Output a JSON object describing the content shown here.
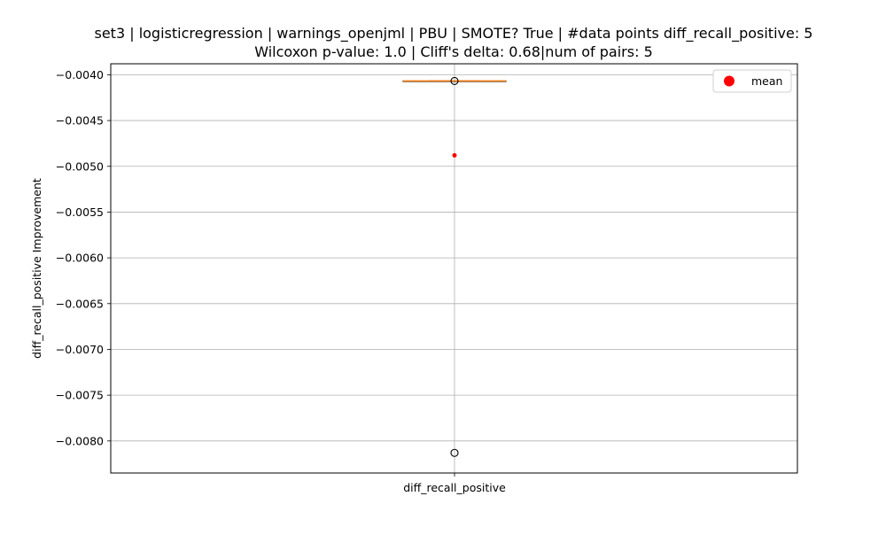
{
  "chart_data": {
    "type": "box",
    "title_line1": "set3 | logisticregression | warnings_openjml | PBU | SMOTE? True | #data points diff_recall_positive: 5",
    "title_line2": "Wilcoxon p-value: 1.0 | Cliff's delta: 0.68|num of pairs: 5",
    "xlabel": "",
    "ylabel": "diff_recall_positive Improvement",
    "categories": [
      "diff_recall_positive"
    ],
    "ylim": [
      -0.00835,
      -0.00388
    ],
    "yticks": [
      -0.004,
      -0.0045,
      -0.005,
      -0.0055,
      -0.006,
      -0.0065,
      -0.007,
      -0.0075,
      -0.008
    ],
    "ytick_labels": [
      "−0.0040",
      "−0.0045",
      "−0.0050",
      "−0.0055",
      "−0.0060",
      "−0.0065",
      "−0.0070",
      "−0.0075",
      "−0.0080"
    ],
    "grid": true,
    "box": {
      "q1": -0.004068,
      "median": -0.004068,
      "q3": -0.004068,
      "whisker_low": -0.004068,
      "whisker_high": -0.004068,
      "mean": -0.00488,
      "outliers": [
        -0.004068,
        -0.00813
      ]
    },
    "legend": {
      "position": "top-right",
      "entries": [
        {
          "label": "mean",
          "color": "#ff0000"
        }
      ]
    },
    "colors": {
      "median_line": "#ff7f0e",
      "box_edge": "#000000",
      "mean_marker": "#ff0000",
      "grid": "#b0b0b0",
      "outlier_edge": "#000000"
    }
  }
}
